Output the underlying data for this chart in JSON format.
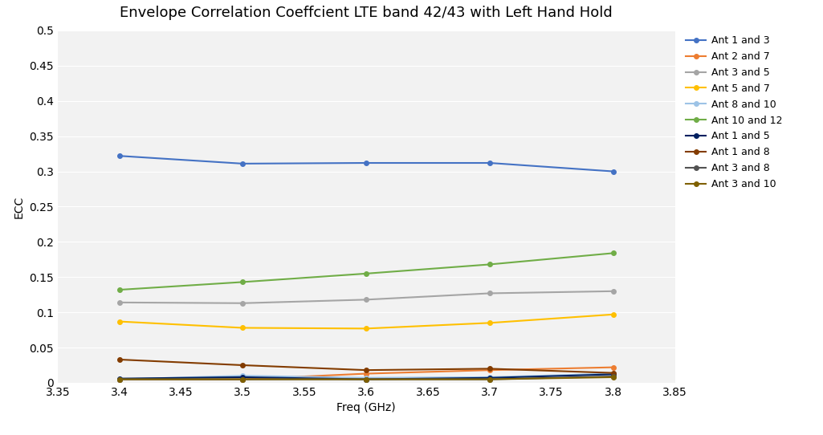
{
  "title": "Envelope Correlation Coeffcient LTE band 42/43 with Left Hand Hold",
  "xlabel": "Freq (GHz)",
  "ylabel": "ECC",
  "xlim": [
    3.35,
    3.85
  ],
  "ylim": [
    0,
    0.5
  ],
  "yticks": [
    0,
    0.05,
    0.1,
    0.15,
    0.2,
    0.25,
    0.3,
    0.35,
    0.4,
    0.45,
    0.5
  ],
  "xticks": [
    3.35,
    3.4,
    3.45,
    3.5,
    3.55,
    3.6,
    3.65,
    3.7,
    3.75,
    3.8,
    3.85
  ],
  "freq": [
    3.4,
    3.5,
    3.6,
    3.7,
    3.8
  ],
  "series": [
    {
      "label": "Ant 1 and 3",
      "color": "#4472C4",
      "values": [
        0.322,
        0.311,
        0.312,
        0.312,
        0.3
      ],
      "linewidth": 1.5,
      "markersize": 4
    },
    {
      "label": "Ant 2 and 7",
      "color": "#ED7D31",
      "values": [
        0.005,
        0.005,
        0.013,
        0.018,
        0.022
      ],
      "linewidth": 1.5,
      "markersize": 4
    },
    {
      "label": "Ant 3 and 5",
      "color": "#A5A5A5",
      "values": [
        0.114,
        0.113,
        0.118,
        0.127,
        0.13
      ],
      "linewidth": 1.5,
      "markersize": 4
    },
    {
      "label": "Ant 5 and 7",
      "color": "#FFC000",
      "values": [
        0.087,
        0.078,
        0.077,
        0.085,
        0.097
      ],
      "linewidth": 1.5,
      "markersize": 4
    },
    {
      "label": "Ant 8 and 10",
      "color": "#9DC3E6",
      "values": [
        0.005,
        0.01,
        0.007,
        0.008,
        0.013
      ],
      "linewidth": 1.5,
      "markersize": 4
    },
    {
      "label": "Ant 10 and 12",
      "color": "#70AD47",
      "values": [
        0.132,
        0.143,
        0.155,
        0.168,
        0.184
      ],
      "linewidth": 1.5,
      "markersize": 4
    },
    {
      "label": "Ant 1 and 5",
      "color": "#002060",
      "values": [
        0.006,
        0.008,
        0.005,
        0.007,
        0.012
      ],
      "linewidth": 1.5,
      "markersize": 4
    },
    {
      "label": "Ant 1 and 8",
      "color": "#833C00",
      "values": [
        0.033,
        0.025,
        0.018,
        0.02,
        0.014
      ],
      "linewidth": 1.5,
      "markersize": 4
    },
    {
      "label": "Ant 3 and 8",
      "color": "#525252",
      "values": [
        0.005,
        0.005,
        0.005,
        0.005,
        0.009
      ],
      "linewidth": 1.5,
      "markersize": 4
    },
    {
      "label": "Ant 3 and 10",
      "color": "#7F6000",
      "values": [
        0.005,
        0.005,
        0.005,
        0.005,
        0.008
      ],
      "linewidth": 1.5,
      "markersize": 4
    }
  ],
  "background_color": "#FFFFFF",
  "plot_bg_color": "#F2F2F2",
  "grid_color": "#FFFFFF",
  "title_fontsize": 13,
  "axis_fontsize": 10,
  "tick_fontsize": 10,
  "legend_fontsize": 9
}
